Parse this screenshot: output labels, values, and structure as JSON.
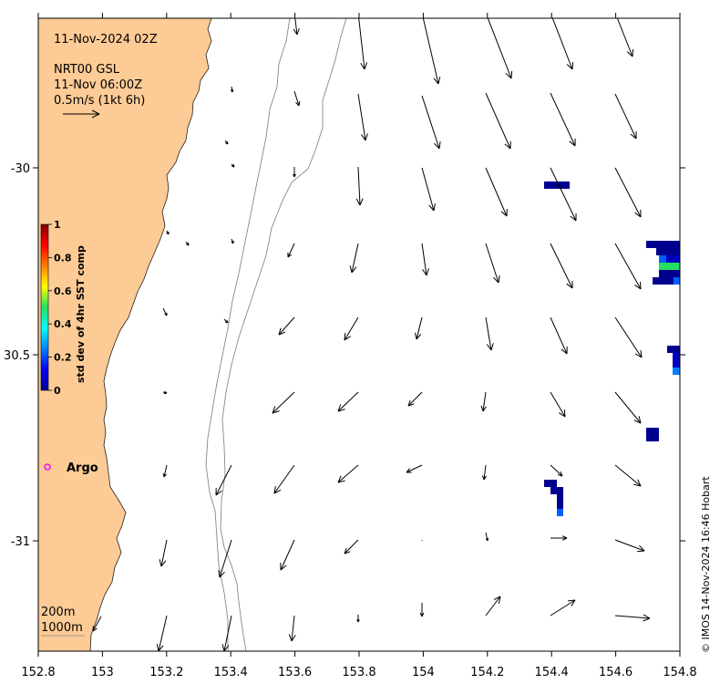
{
  "map": {
    "timestamp": "11-Nov-2024 02Z",
    "product": "NRT00 GSL",
    "product_time": "11-Nov 06:00Z",
    "scale_label": "0.5m/s (1kt 6h)",
    "depth_labels": [
      "200m",
      "1000m"
    ],
    "argo_label": "Argo",
    "credit": "© IMOS 14-Nov-2024 16:46 Hobart",
    "land_color": "#fccb96",
    "argo_color": "#ff00ff",
    "x_ticks": [
      "152.8",
      "153",
      "153.2",
      "153.4",
      "153.6",
      "153.8",
      "154",
      "154.2",
      "154.4",
      "154.6",
      "154.8"
    ],
    "y_ticks": [
      "-30",
      "30.5",
      "-31"
    ],
    "colorbar": {
      "label": "std dev of 4hr SST comp",
      "ticks": [
        "1",
        "0.8",
        "0.6",
        "0.4",
        "0.2",
        "0"
      ]
    }
  }
}
